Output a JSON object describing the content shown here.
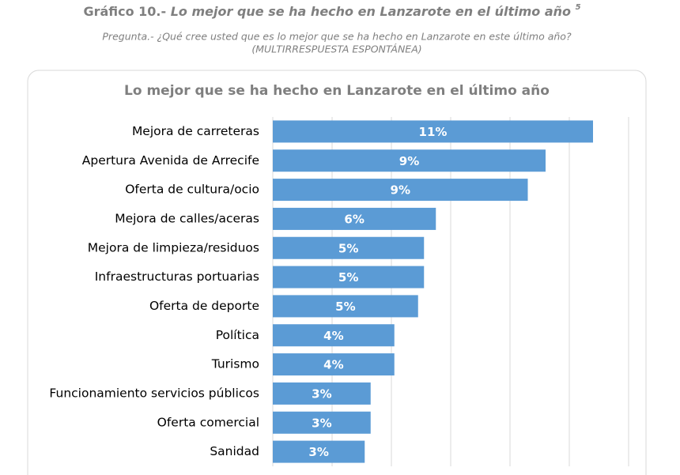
{
  "header": {
    "title_number": "Gráfico 10.-",
    "title": "Lo mejor que se ha hecho en Lanzarote en el último año",
    "footnote": "5",
    "subtitle_lines": [
      "Pregunta.- ¿Qué cree usted que es lo mejor que se ha hecho en Lanzarote en este último año?",
      "(MULTIRRESPUESTA ESPONTÁNEA)"
    ]
  },
  "chart_data": {
    "type": "hbar",
    "title": "Lo mejor que se ha hecho en Lanzarote en el último año",
    "categories": [
      "Mejora de carreteras",
      "Apertura Avenida de Arrecife",
      "Oferta de cultura/ocio",
      "Mejora de calles/aceras",
      "Mejora de limpieza/residuos",
      "Infraestructuras portuarias",
      "Oferta de deporte",
      "Política",
      "Turismo",
      "Funcionamiento servicios públicos",
      "Oferta comercial",
      "Sanidad"
    ],
    "values": [
      10.8,
      9.2,
      8.6,
      5.5,
      5.1,
      5.1,
      4.9,
      4.1,
      4.1,
      3.3,
      3.3,
      3.1
    ],
    "value_labels": [
      "11%",
      "9%",
      "9%",
      "6%",
      "5%",
      "5%",
      "5%",
      "4%",
      "4%",
      "3%",
      "3%",
      "3%"
    ],
    "color": "#5b9bd5",
    "xlim": [
      0,
      12
    ],
    "xticks": [
      0,
      2,
      4,
      6,
      8,
      10,
      12
    ],
    "grid": true
  }
}
